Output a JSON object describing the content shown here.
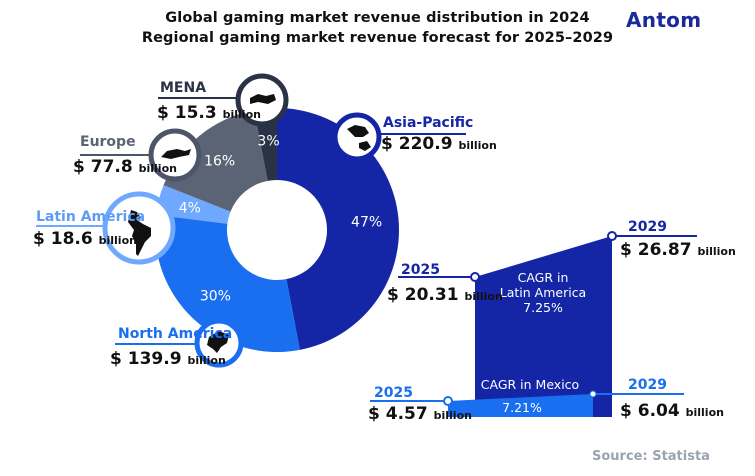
{
  "header": {
    "title_line1": "Global gaming market revenue distribution in 2024",
    "title_line2": "Regional gaming market revenue forecast for 2025–2029",
    "logo": "Antom"
  },
  "source": "Source: Statista",
  "chart_data": [
    {
      "type": "pie",
      "variant": "donut",
      "title": "Global gaming market revenue distribution in 2024",
      "unit": "billion USD",
      "slices": [
        {
          "name": "Asia-Pacific",
          "percent": 47,
          "percent_label": "47%",
          "value": 220.9,
          "value_label": "$ 220.9",
          "color": "#1426a6",
          "ring_color": "#1426a6",
          "label_color": "#1426a6"
        },
        {
          "name": "North America",
          "percent": 30,
          "percent_label": "30%",
          "value": 139.9,
          "value_label": "$ 139.9",
          "color": "#1a6ef0",
          "ring_color": "#1a6ef0",
          "label_color": "#1a6ef0"
        },
        {
          "name": "Latin America",
          "percent": 4,
          "percent_label": "4%",
          "value": 18.6,
          "value_label": "$ 18.6",
          "color": "#6fa8ff",
          "ring_color": "#6fa8ff",
          "label_color": "#5e9cf5"
        },
        {
          "name": "Europe",
          "percent": 16,
          "percent_label": "16%",
          "value": 77.8,
          "value_label": "$ 77.8",
          "color": "#5b6475",
          "ring_color": "#4d5668",
          "label_color": "#5b6475"
        },
        {
          "name": "MENA",
          "percent": 3,
          "percent_label": "3%",
          "value": 15.3,
          "value_label": "$ 15.3",
          "color": "#2a3346",
          "ring_color": "#2a3346",
          "label_color": "#2a3346"
        }
      ],
      "unit_label": "billion"
    },
    {
      "type": "area",
      "title": "Regional gaming market revenue forecast for 2025–2029",
      "unit": "billion USD",
      "series": [
        {
          "name": "Latin America",
          "x": [
            2025,
            2029
          ],
          "values": [
            20.31,
            26.87
          ],
          "value_labels": [
            "$ 20.31",
            "$ 26.87"
          ],
          "cagr_label": [
            "CAGR in",
            "Latin America",
            "7.25%"
          ],
          "color": "#1426a6"
        },
        {
          "name": "Mexico",
          "x": [
            2025,
            2029
          ],
          "values": [
            4.57,
            6.04
          ],
          "value_labels": [
            "$ 4.57",
            "$ 6.04"
          ],
          "cagr_label": [
            "CAGR in Mexico",
            "7.21%"
          ],
          "color": "#1a6ef0"
        }
      ],
      "year_labels": [
        "2025",
        "2029"
      ],
      "unit_label": "billion"
    }
  ]
}
